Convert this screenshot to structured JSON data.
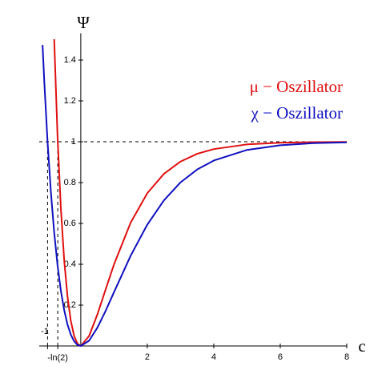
{
  "chart_data": {
    "type": "line",
    "x_label": "c",
    "y_label": "Ψ",
    "x": [
      -1.15,
      -1.1,
      -1,
      -0.9,
      -0.8,
      -0.7,
      -0.6,
      -0.5,
      -0.4,
      -0.3,
      -0.2,
      -0.1,
      0,
      0.25,
      0.5,
      0.75,
      1,
      1.5,
      2,
      2.5,
      3,
      3.5,
      4,
      5,
      6,
      7,
      8
    ],
    "series": [
      {
        "name": "μ − Oszillator",
        "color": "#e01010",
        "values": [
          null,
          null,
          null,
          null,
          1.502,
          1.028,
          0.676,
          0.421,
          0.242,
          0.122,
          0.049,
          0.011,
          0,
          0.049,
          0.155,
          0.278,
          0.4,
          0.604,
          0.748,
          0.843,
          0.903,
          0.941,
          0.964,
          0.987,
          0.995,
          0.998,
          0.999
        ]
      },
      {
        "name": "χ − Oszillator",
        "color": "#1010c0",
        "values": [
          1.474,
          1.3,
          1,
          0.754,
          0.555,
          0.396,
          0.271,
          0.176,
          0.105,
          0.055,
          0.023,
          0.005,
          0,
          0.026,
          0.09,
          0.173,
          0.264,
          0.442,
          0.594,
          0.713,
          0.801,
          0.864,
          0.908,
          0.96,
          0.983,
          0.993,
          0.997
        ]
      }
    ],
    "xlim": [
      -1.25,
      8
    ],
    "ylim": [
      0,
      1.5
    ],
    "xticks": [
      2,
      4,
      6,
      8
    ],
    "yticks": [
      0.2,
      0.4,
      0.6,
      0.8,
      1,
      1.2,
      1.4
    ],
    "hline": 1,
    "x_markers": [
      {
        "value": -1,
        "label": "-1"
      },
      {
        "value": -0.693,
        "label": "-ln(2)"
      }
    ]
  }
}
